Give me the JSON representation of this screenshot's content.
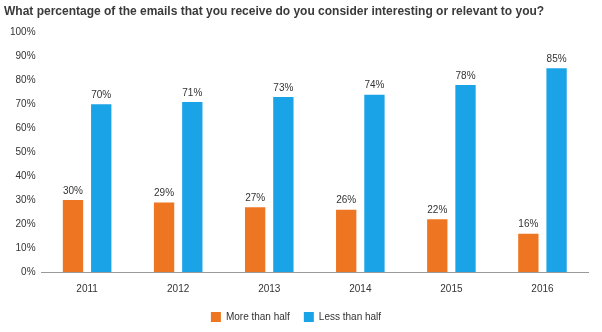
{
  "chart_data": {
    "type": "bar",
    "title": "What percentage of the emails that you receive do you consider interesting or relevant to you?",
    "categories": [
      "2011",
      "2012",
      "2013",
      "2014",
      "2015",
      "2016"
    ],
    "series": [
      {
        "name": "More than half",
        "color": "#ee7623",
        "values": [
          30,
          29,
          27,
          26,
          22,
          16
        ],
        "value_labels": [
          "30%",
          "29%",
          "27%",
          "26%",
          "22%",
          "16%"
        ]
      },
      {
        "name": "Less than half",
        "color": "#1ba3e8",
        "values": [
          70,
          71,
          73,
          74,
          78,
          85
        ],
        "value_labels": [
          "70%",
          "71%",
          "73%",
          "74%",
          "78%",
          "85%"
        ]
      }
    ],
    "ylim": [
      0,
      100
    ],
    "yticks": [
      {
        "value": 0,
        "label": "0%"
      },
      {
        "value": 10,
        "label": "10%"
      },
      {
        "value": 20,
        "label": "20%"
      },
      {
        "value": 30,
        "label": "30%"
      },
      {
        "value": 40,
        "label": "40%"
      },
      {
        "value": 50,
        "label": "50%"
      },
      {
        "value": 60,
        "label": "60%"
      },
      {
        "value": 70,
        "label": "70%"
      },
      {
        "value": 80,
        "label": "80%"
      },
      {
        "value": 90,
        "label": "90%"
      },
      {
        "value": 100,
        "label": "100%"
      }
    ],
    "grid": false,
    "legend": "bottom",
    "data_labels": true
  }
}
